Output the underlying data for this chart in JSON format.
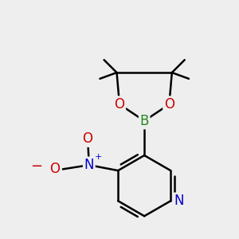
{
  "background_color": "#eeeeee",
  "bond_color": "#000000",
  "bond_width": 1.8,
  "atom_bg_color": "#eeeeee",
  "colors": {
    "N": "#0000cc",
    "B": "#228B22",
    "O": "#cc0000",
    "C": "#000000"
  }
}
